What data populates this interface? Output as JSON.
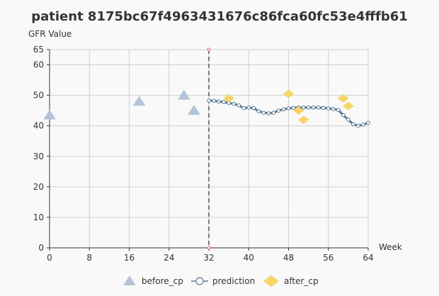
{
  "chart_data": {
    "type": "line",
    "title": "patient 8175bc67f4963431676c86fca60fc53e4fffb61",
    "ylabel": "GFR Value",
    "xlabel": "Week",
    "xlim": [
      0,
      64
    ],
    "ylim": [
      0,
      65
    ],
    "x_ticks": [
      0,
      8,
      16,
      24,
      32,
      40,
      48,
      56,
      64
    ],
    "y_ticks": [
      0,
      10,
      20,
      30,
      40,
      50,
      60,
      65
    ],
    "grid": true,
    "legend_position": "bottom",
    "change_point_week": 32,
    "series": [
      {
        "name": "before_cp",
        "marker": "triangle",
        "color": "#b3c4d8",
        "points": [
          [
            0,
            43.5
          ],
          [
            18,
            48
          ],
          [
            27,
            50
          ],
          [
            29,
            45
          ]
        ]
      },
      {
        "name": "prediction",
        "marker": "circle-line",
        "color": "#5a7a94",
        "points": [
          [
            32,
            48.3
          ],
          [
            33,
            48.2
          ],
          [
            34,
            48.0
          ],
          [
            35,
            47.8
          ],
          [
            36,
            47.5
          ],
          [
            37,
            47.2
          ],
          [
            38,
            46.7
          ],
          [
            39,
            45.8
          ],
          [
            40,
            46.0
          ],
          [
            41,
            45.8
          ],
          [
            42,
            44.8
          ],
          [
            43,
            44.3
          ],
          [
            44,
            44.1
          ],
          [
            45,
            44.3
          ],
          [
            46,
            45.0
          ],
          [
            47,
            45.4
          ],
          [
            48,
            45.7
          ],
          [
            49,
            45.9
          ],
          [
            50,
            46.0
          ],
          [
            51,
            46.0
          ],
          [
            52,
            46.0
          ],
          [
            53,
            46.0
          ],
          [
            54,
            46.0
          ],
          [
            55,
            45.9
          ],
          [
            56,
            45.7
          ],
          [
            57,
            45.5
          ],
          [
            58,
            45.2
          ],
          [
            59,
            43.5
          ],
          [
            60,
            42.0
          ],
          [
            61,
            40.5
          ],
          [
            62,
            40.0
          ],
          [
            63,
            40.4
          ],
          [
            64,
            41.0
          ]
        ]
      },
      {
        "name": "after_cp",
        "marker": "diamond",
        "color": "#f7d568",
        "points": [
          [
            36,
            49
          ],
          [
            48,
            50.5
          ],
          [
            50,
            45
          ],
          [
            51,
            42
          ],
          [
            59,
            49
          ],
          [
            60,
            46.5
          ]
        ]
      }
    ]
  }
}
